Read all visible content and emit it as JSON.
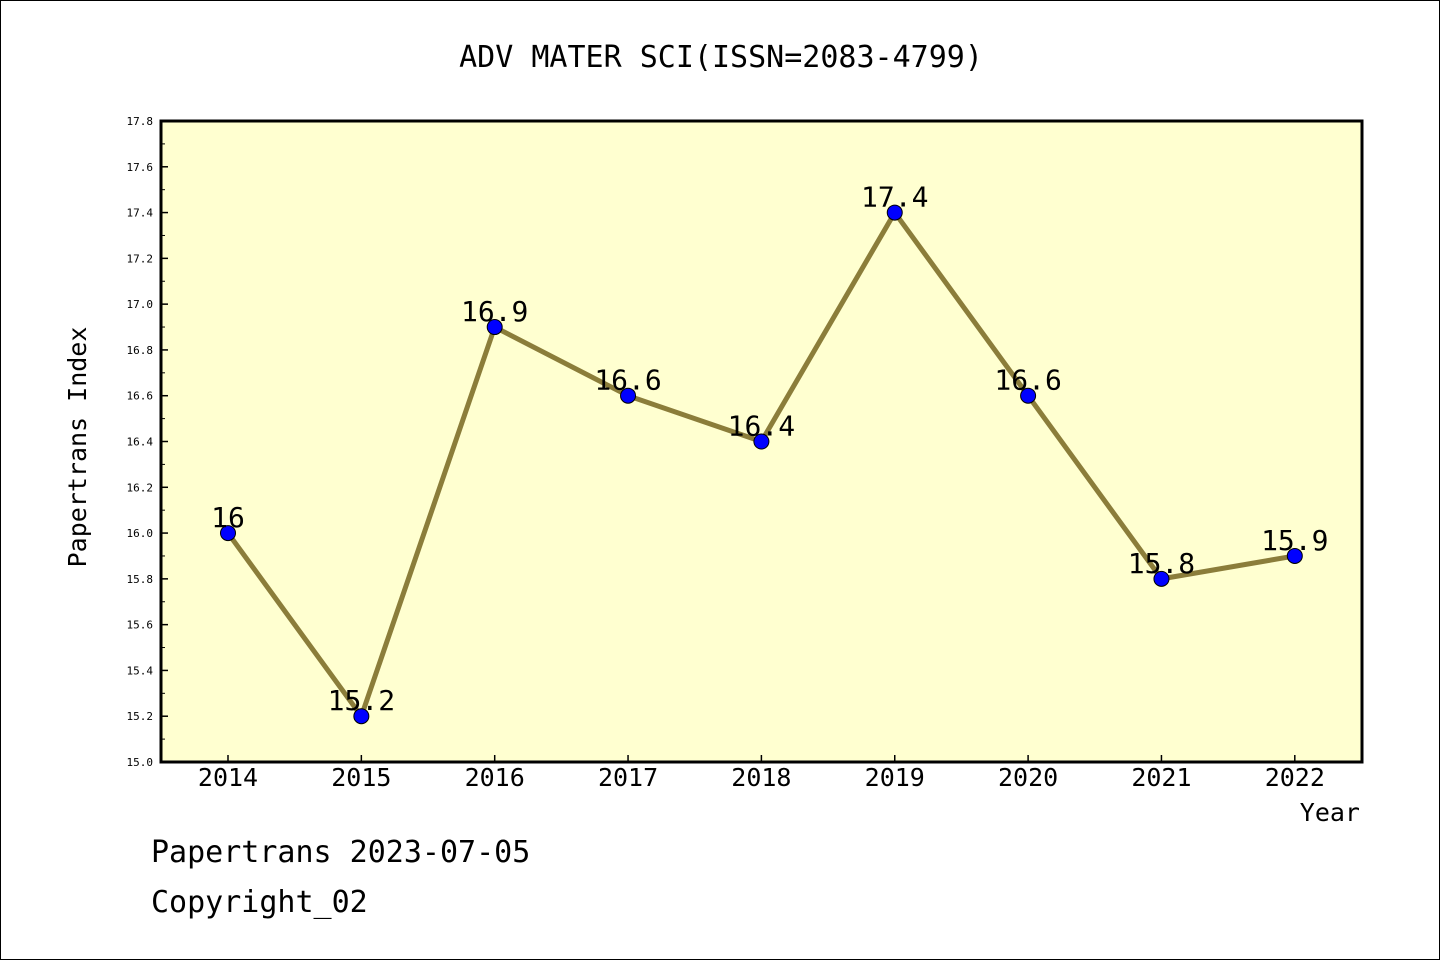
{
  "chart_data": {
    "type": "line",
    "title": "ADV MATER SCI(ISSN=2083-4799)",
    "xlabel": "Year",
    "ylabel": "Papertrans Index",
    "categories": [
      "2014",
      "2015",
      "2016",
      "2017",
      "2018",
      "2019",
      "2020",
      "2021",
      "2022"
    ],
    "series": [
      {
        "values": [
          16,
          15.2,
          16.9,
          16.6,
          16.4,
          17.4,
          16.6,
          15.8,
          15.9
        ],
        "data_labels": [
          "16",
          "15.2",
          "16.9",
          "16.6",
          "16.4",
          "17.4",
          "16.6",
          "15.8",
          "15.9"
        ]
      }
    ],
    "ylim": [
      15.0,
      17.8
    ],
    "yticks": [
      "15.0",
      "15.2",
      "15.4",
      "15.6",
      "15.8",
      "16.0",
      "16.2",
      "16.4",
      "16.6",
      "16.8",
      "17.0",
      "17.2",
      "17.4",
      "17.6",
      "17.8"
    ],
    "grid": false,
    "colors": {
      "plot_background": "#ffffd0",
      "line": "#8b7d3a",
      "marker": "#0000ff"
    }
  },
  "footer": {
    "line1": "Papertrans 2023-07-05",
    "line2": "Copyright_02"
  }
}
